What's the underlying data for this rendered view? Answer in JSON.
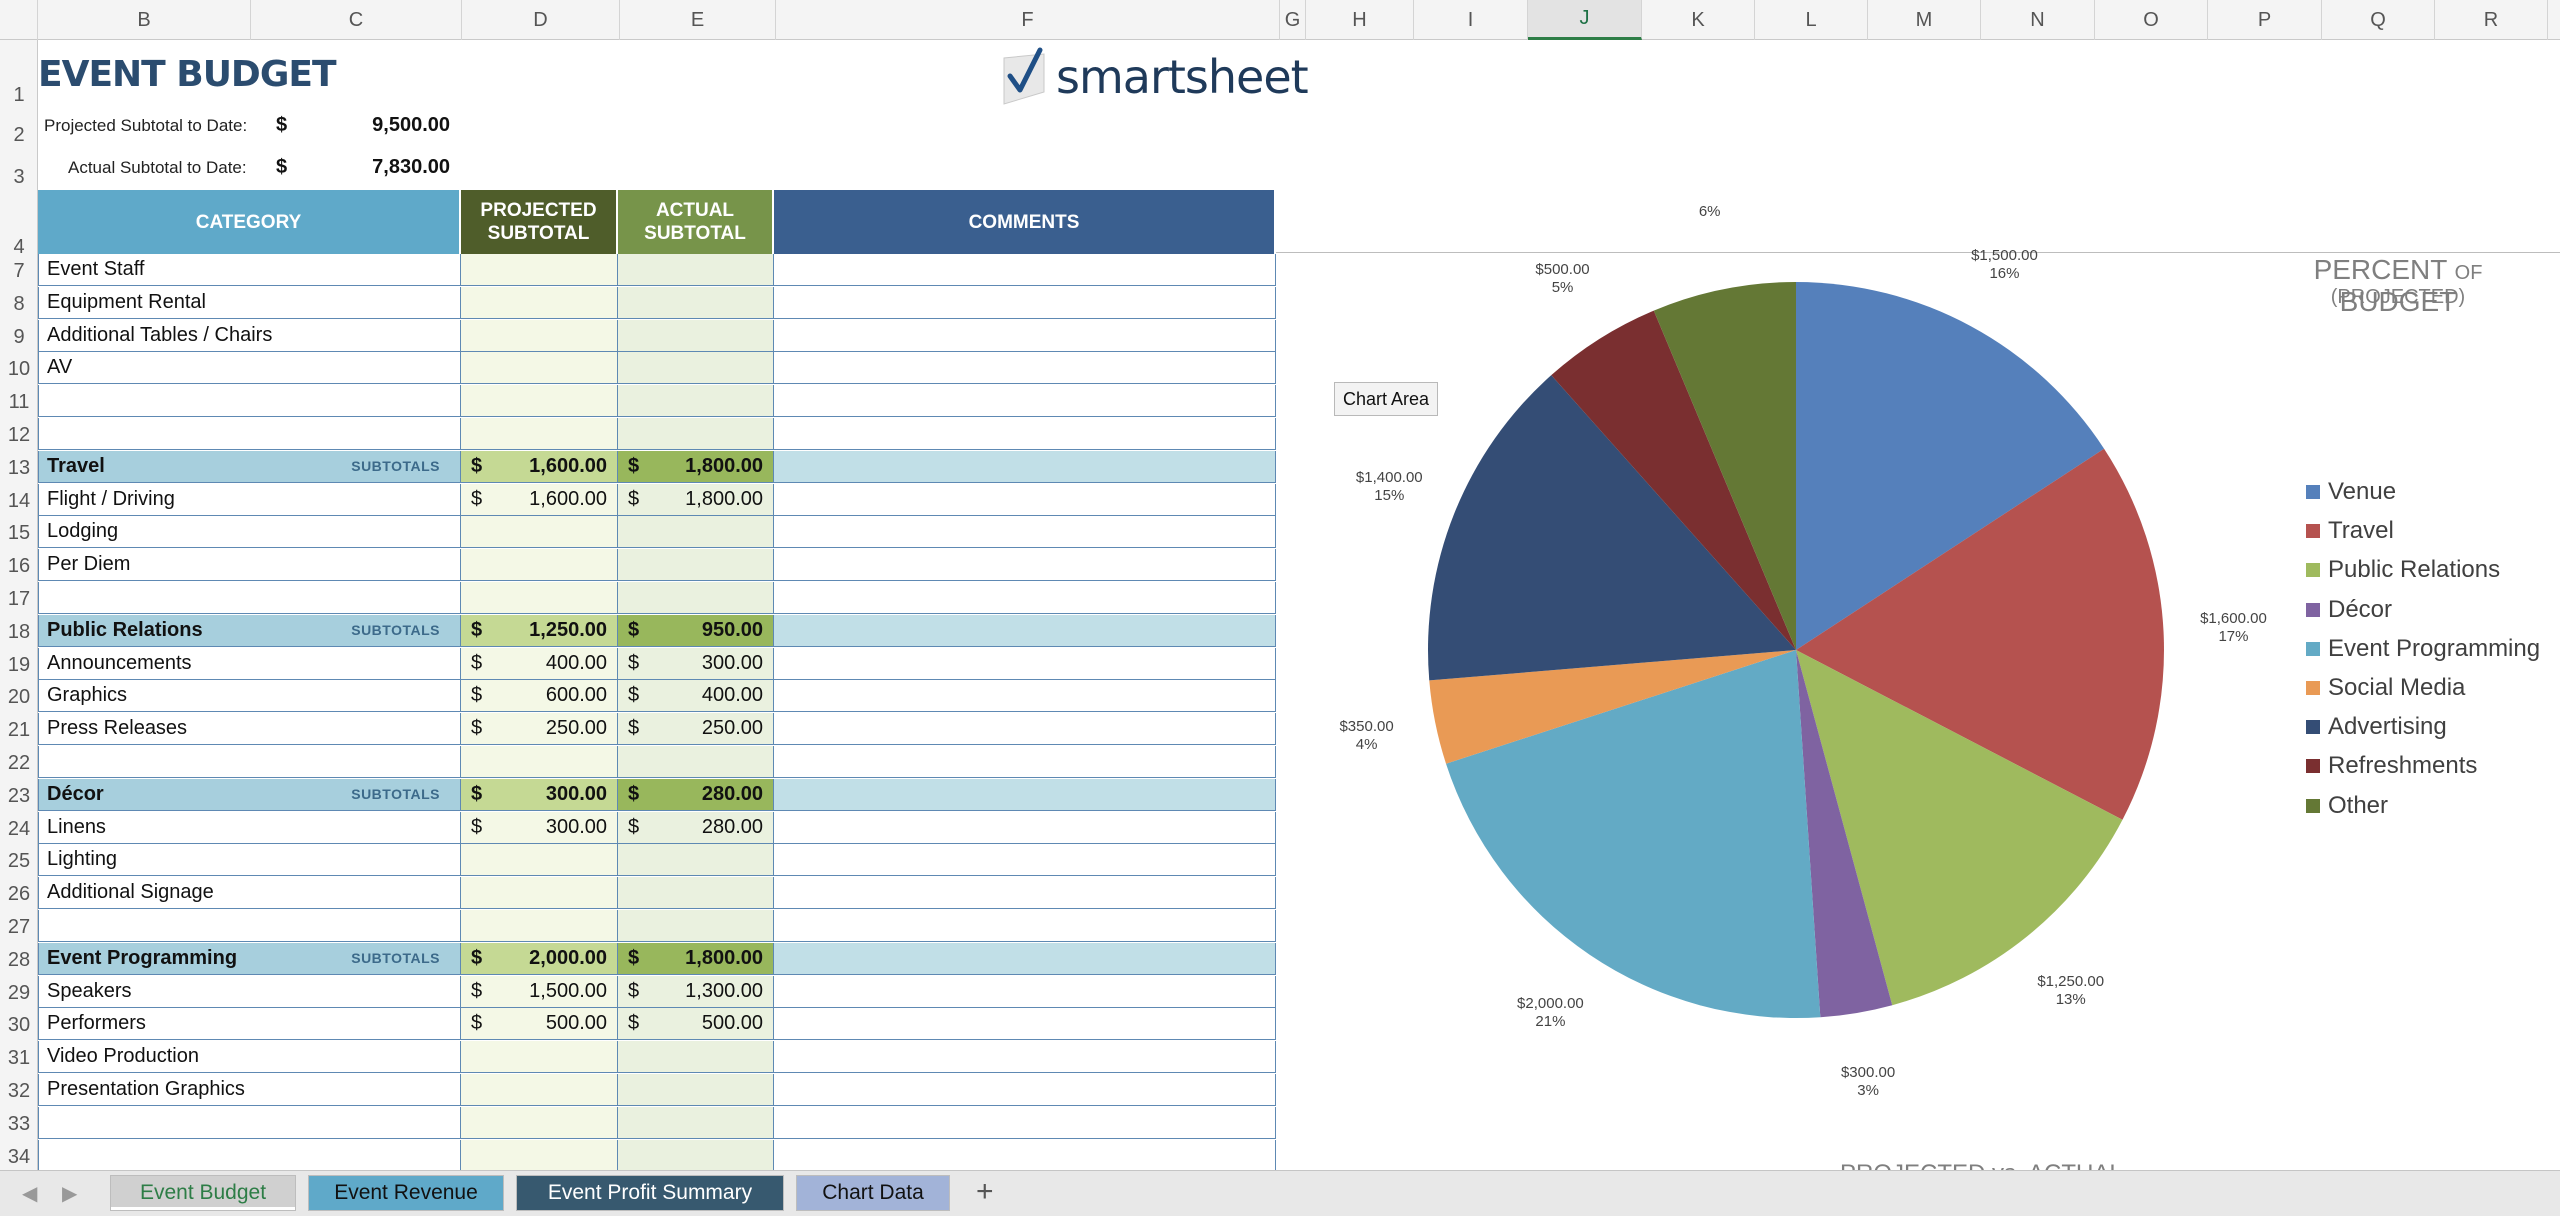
{
  "columns": [
    {
      "id": "col-a",
      "label": ""
    },
    {
      "id": "col-b",
      "label": "B"
    },
    {
      "id": "col-c",
      "label": "C"
    },
    {
      "id": "col-d",
      "label": "D"
    },
    {
      "id": "col-e",
      "label": "E"
    },
    {
      "id": "col-f",
      "label": "F"
    },
    {
      "id": "col-g",
      "label": "G"
    },
    {
      "id": "col-h",
      "label": "H"
    },
    {
      "id": "col-i",
      "label": "I"
    },
    {
      "id": "col-j",
      "label": "J"
    },
    {
      "id": "col-k",
      "label": "K"
    },
    {
      "id": "col-l",
      "label": "L"
    },
    {
      "id": "col-m",
      "label": "M"
    },
    {
      "id": "col-n",
      "label": "N"
    },
    {
      "id": "col-o",
      "label": "O"
    },
    {
      "id": "col-p",
      "label": "P"
    },
    {
      "id": "col-q",
      "label": "Q"
    },
    {
      "id": "col-r",
      "label": "R"
    }
  ],
  "selected_column": "J",
  "rows_top": [
    "1",
    "2",
    "3",
    "4"
  ],
  "header": {
    "title": "EVENT BUDGET",
    "projected_label": "Projected Subtotal to Date:",
    "projected_currency": "$",
    "projected_value": "9,500.00",
    "actual_label": "Actual Subtotal to Date:",
    "actual_currency": "$",
    "actual_value": "7,830.00",
    "logo_text": "smartsheet"
  },
  "table": {
    "headers": {
      "category": "CATEGORY",
      "projected": "PROJECTED SUBTOTAL",
      "actual": "ACTUAL SUBTOTAL",
      "comments": "COMMENTS"
    },
    "subtotal_tag": "SUBTOTALS",
    "rows": [
      {
        "n": "7",
        "label": "Event Staff",
        "type": "item"
      },
      {
        "n": "8",
        "label": "Equipment Rental",
        "type": "item"
      },
      {
        "n": "9",
        "label": "Additional Tables / Chairs",
        "type": "item"
      },
      {
        "n": "10",
        "label": "AV",
        "type": "item"
      },
      {
        "n": "11",
        "label": "",
        "type": "item"
      },
      {
        "n": "12",
        "label": "",
        "type": "item"
      },
      {
        "n": "13",
        "label": "Travel",
        "type": "sub",
        "proj": "1,600.00",
        "act": "1,800.00"
      },
      {
        "n": "14",
        "label": "Flight / Driving",
        "type": "item",
        "proj": "1,600.00",
        "act": "1,800.00"
      },
      {
        "n": "15",
        "label": "Lodging",
        "type": "item"
      },
      {
        "n": "16",
        "label": "Per Diem",
        "type": "item"
      },
      {
        "n": "17",
        "label": "",
        "type": "item"
      },
      {
        "n": "18",
        "label": "Public Relations",
        "type": "sub",
        "proj": "1,250.00",
        "act": "950.00"
      },
      {
        "n": "19",
        "label": "Announcements",
        "type": "item",
        "proj": "400.00",
        "act": "300.00"
      },
      {
        "n": "20",
        "label": "Graphics",
        "type": "item",
        "proj": "600.00",
        "act": "400.00"
      },
      {
        "n": "21",
        "label": "Press Releases",
        "type": "item",
        "proj": "250.00",
        "act": "250.00"
      },
      {
        "n": "22",
        "label": "",
        "type": "item"
      },
      {
        "n": "23",
        "label": "Décor",
        "type": "sub",
        "proj": "300.00",
        "act": "280.00"
      },
      {
        "n": "24",
        "label": "Linens",
        "type": "item",
        "proj": "300.00",
        "act": "280.00"
      },
      {
        "n": "25",
        "label": "Lighting",
        "type": "item"
      },
      {
        "n": "26",
        "label": "Additional Signage",
        "type": "item"
      },
      {
        "n": "27",
        "label": "",
        "type": "item"
      },
      {
        "n": "28",
        "label": "Event Programming",
        "type": "sub",
        "proj": "2,000.00",
        "act": "1,800.00"
      },
      {
        "n": "29",
        "label": "Speakers",
        "type": "item",
        "proj": "1,500.00",
        "act": "1,300.00"
      },
      {
        "n": "30",
        "label": "Performers",
        "type": "item",
        "proj": "500.00",
        "act": "500.00"
      },
      {
        "n": "31",
        "label": "Video Production",
        "type": "item"
      },
      {
        "n": "32",
        "label": "Presentation Graphics",
        "type": "item"
      },
      {
        "n": "33",
        "label": "",
        "type": "item"
      },
      {
        "n": "34",
        "label": "",
        "type": "item"
      }
    ],
    "currency": "$"
  },
  "chart": {
    "title_pre": "PERCENT ",
    "title_of": "OF",
    "title_post": " BUDGET",
    "subtitle": "(PROJECTED)",
    "tooltip": "Chart Area",
    "next_title_fragment": "PROJECTED vs. ACTUAL"
  },
  "chart_data": {
    "type": "pie",
    "title": "PERCENT OF BUDGET (PROJECTED)",
    "categories": [
      "Venue",
      "Travel",
      "Public Relations",
      "Décor",
      "Event Programming",
      "Social Media",
      "Advertising",
      "Refreshments",
      "Other"
    ],
    "values": [
      1500,
      1600,
      1250,
      300,
      2000,
      350,
      1400,
      500,
      600
    ],
    "value_labels": [
      "$1,500.00",
      "$1,600.00",
      "$1,250.00",
      "$300.00",
      "$2,000.00",
      "$350.00",
      "$1,400.00",
      "$500.00",
      ""
    ],
    "percent_labels": [
      "16%",
      "17%",
      "13%",
      "3%",
      "21%",
      "4%",
      "15%",
      "5%",
      "6%"
    ],
    "colors": [
      "#5580bb",
      "#b5524f",
      "#9fba5e",
      "#7f63a1",
      "#63aac5",
      "#e99a55",
      "#344d75",
      "#7a2f30",
      "#647835"
    ],
    "legend_position": "right"
  },
  "sheet_tabs": [
    {
      "label": "Event Budget",
      "active": true,
      "color": "#d0d0d0",
      "text_color": "#2d7d46"
    },
    {
      "label": "Event Revenue",
      "active": false,
      "color": "#5fa9c9",
      "text_color": "#111111"
    },
    {
      "label": "Event Profit Summary",
      "active": false,
      "color": "#37596f",
      "text_color": "#ffffff"
    },
    {
      "label": "Chart Data",
      "active": false,
      "color": "#a2b3d8",
      "text_color": "#111111"
    }
  ],
  "add_sheet": "+",
  "nav": {
    "prev": "◀",
    "next": "▶"
  },
  "colors": {
    "header_blue": "#5fa9c9",
    "header_dark_green": "#4f5d2a",
    "header_green": "#77944a",
    "header_navy": "#3a5f8f"
  }
}
